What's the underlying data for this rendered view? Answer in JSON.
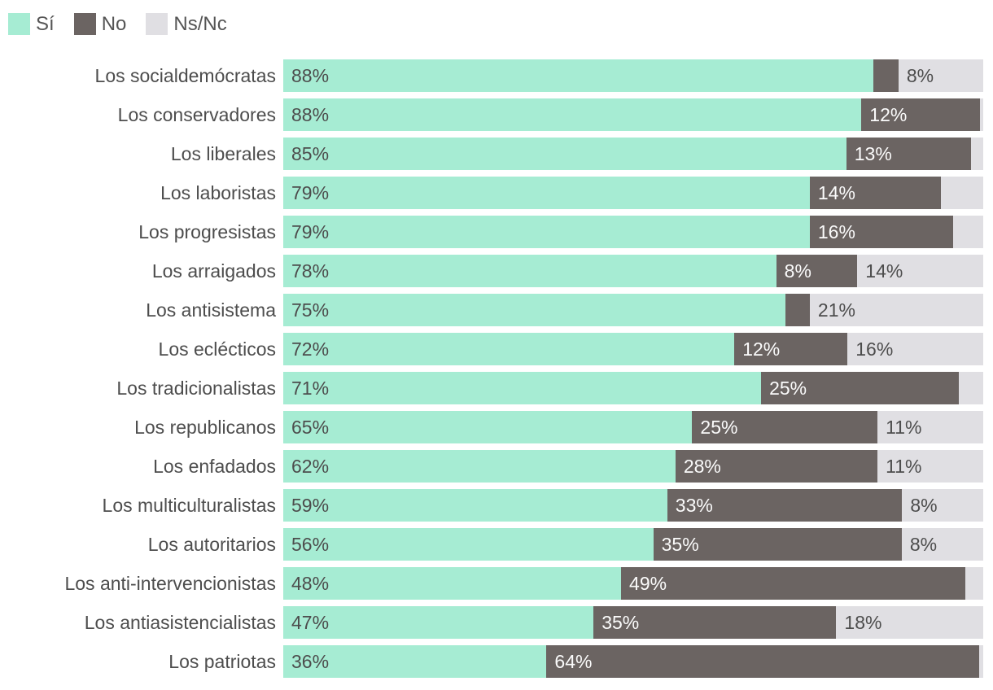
{
  "colors": {
    "si": "#a6ecd3",
    "no": "#6b6462",
    "nsnc": "#e0dfe3",
    "text_dark": "#4d4d4d",
    "text_on_dark": "#fbfbfb",
    "legend_text": "#555555",
    "background": "#ffffff"
  },
  "legend": {
    "items": [
      {
        "label": "Sí",
        "color": "#a6ecd3"
      },
      {
        "label": "No",
        "color": "#6b6462"
      },
      {
        "label": "Ns/Nc",
        "color": "#e0dfe3"
      }
    ]
  },
  "chart_data": {
    "type": "bar",
    "orientation": "horizontal",
    "stacked": true,
    "value_format": "percent",
    "axis_range": [
      0,
      100
    ],
    "grid": false,
    "legend_position": "top-left",
    "title": "",
    "categories": [
      "Los socialdemócratas",
      "Los conservadores",
      "Los liberales",
      "Los laboristas",
      "Los progresistas",
      "Los arraigados",
      "Los antisistema",
      "Los eclécticos",
      "Los tradicionalistas",
      "Los republicanos",
      "Los enfadados",
      "Los multiculturalistas",
      "Los autoritarios",
      "Los anti-intervencionistas",
      "Los antiasistencialistas",
      "Los patriotas"
    ],
    "series": [
      {
        "key": "si",
        "name": "Sí",
        "color": "#a6ecd3",
        "label_color": "#4d4d4d",
        "values": [
          88,
          88,
          85,
          79,
          79,
          78,
          75,
          72,
          71,
          65,
          62,
          59,
          56,
          48,
          47,
          36
        ]
      },
      {
        "key": "no",
        "name": "No",
        "color": "#6b6462",
        "label_color": "#fbfbfb",
        "values": [
          4,
          12,
          13,
          14,
          16,
          8,
          4,
          12,
          25,
          25,
          28,
          33,
          35,
          49,
          35,
          64
        ]
      },
      {
        "key": "nsnc",
        "name": "Ns/Nc",
        "color": "#e0dfe3",
        "label_color": "#4d4d4d",
        "values": [
          8,
          0.6,
          2,
          7,
          5,
          14,
          21,
          16,
          4,
          11,
          11,
          8,
          8,
          3,
          18,
          0.7
        ]
      }
    ],
    "segment_labels": [
      [
        "88%",
        "",
        "8%"
      ],
      [
        "88%",
        "12%",
        ""
      ],
      [
        "85%",
        "13%",
        ""
      ],
      [
        "79%",
        "14%",
        ""
      ],
      [
        "79%",
        "16%",
        ""
      ],
      [
        "78%",
        "8%",
        "14%"
      ],
      [
        "75%",
        "",
        "21%"
      ],
      [
        "72%",
        "12%",
        "16%"
      ],
      [
        "71%",
        "25%",
        ""
      ],
      [
        "65%",
        "25%",
        "11%"
      ],
      [
        "62%",
        "28%",
        "11%"
      ],
      [
        "59%",
        "33%",
        "8%"
      ],
      [
        "56%",
        "35%",
        "8%"
      ],
      [
        "48%",
        "49%",
        ""
      ],
      [
        "47%",
        "35%",
        "18%"
      ],
      [
        "36%",
        "64%",
        ""
      ]
    ]
  }
}
